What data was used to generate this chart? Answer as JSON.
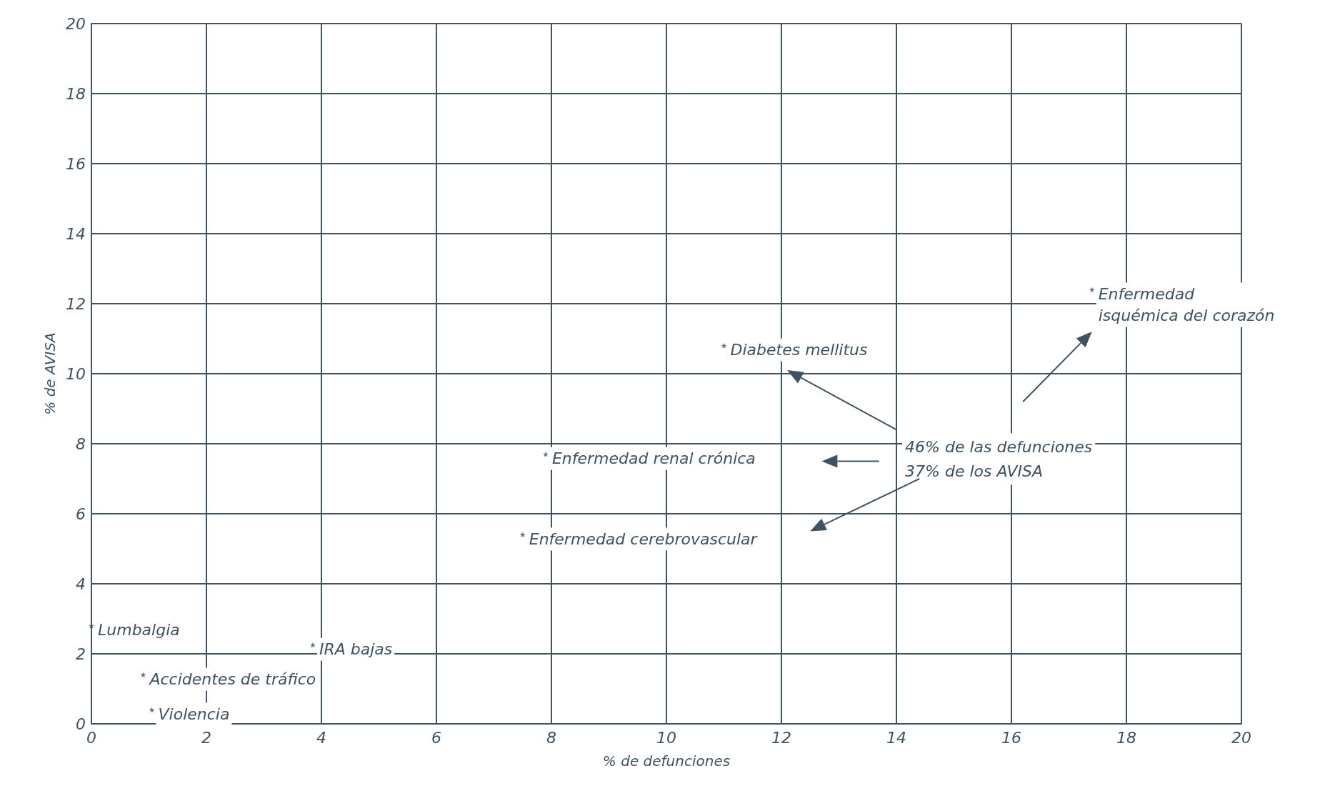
{
  "chart_data": {
    "type": "scatter",
    "xlabel": "% de defunciones",
    "ylabel": "% de AVISA",
    "x": [
      0,
      0.9,
      1.05,
      3.85,
      7.5,
      7.9,
      11.0,
      17.4
    ],
    "values": [
      2.8,
      1.4,
      0.4,
      2.25,
      5.4,
      7.7,
      10.8,
      12.4
    ],
    "color": "#3d5363",
    "marker": "star",
    "xlim": [
      0,
      20
    ],
    "xticks": [
      0,
      2,
      4,
      6,
      8,
      10,
      12,
      14,
      16,
      18,
      20
    ],
    "ylim": [
      0,
      20
    ],
    "yticks": [
      0,
      2,
      4,
      6,
      8,
      10,
      12,
      14,
      16,
      18,
      20
    ],
    "grid": true,
    "annotations": [
      {
        "text": "Lumbalgia",
        "x": 0,
        "y": 2.8
      },
      {
        "text": "Accidentes de tráfico",
        "x": 0.9,
        "y": 1.4
      },
      {
        "text": "Violencia",
        "x": 1.05,
        "y": 0.4
      },
      {
        "text": "IRA bajas",
        "x": 3.85,
        "y": 2.25
      },
      {
        "text": "Enfermedad cerebrovascular",
        "x": 7.5,
        "y": 5.4
      },
      {
        "text": "Enfermedad renal crónica",
        "x": 7.9,
        "y": 7.7
      },
      {
        "text": "Diabetes mellitus",
        "x": 11.0,
        "y": 10.8
      },
      {
        "text": "Enfermedad\nisquémica del corazón",
        "x": 17.4,
        "y": 12.4
      },
      "46% de las defunciones\n37% de los AVISA"
    ]
  }
}
